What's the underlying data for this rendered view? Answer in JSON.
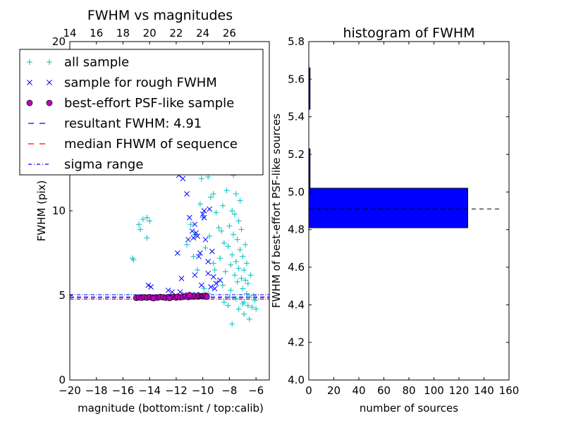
{
  "chart_data": [
    {
      "type": "scatter",
      "title": "FWHM vs magnitudes",
      "xlabel": "magnitude (bottom:isnt / top:calib)",
      "ylabel": "FWHM (pix)",
      "xlim": [
        -20,
        -5
      ],
      "ylim": [
        0,
        20
      ],
      "x_ticks": [
        -20,
        -18,
        -16,
        -14,
        -12,
        -10,
        -8,
        -6
      ],
      "x_tick_labels": [
        "−20",
        "−18",
        "−16",
        "−14",
        "−12",
        "−10",
        "−8",
        "−6"
      ],
      "y_ticks": [
        0,
        5,
        10,
        15,
        20
      ],
      "y_tick_labels": [
        "0",
        "5",
        "10",
        "15",
        "20"
      ],
      "top_x_ticks": [
        14,
        16,
        18,
        20,
        22,
        24,
        26
      ],
      "top_x_tick_labels": [
        "14",
        "16",
        "18",
        "20",
        "22",
        "24",
        "26"
      ],
      "top_x_offset": 34,
      "grid": false,
      "legend_position": "upper-left",
      "resultant_fwhm": 4.91,
      "median_fwhm": 4.86,
      "sigma_range": [
        4.78,
        5.04
      ],
      "series": [
        {
          "name": "all sample",
          "marker": "plus",
          "color": "#00bfbf",
          "points": [
            [
              -15.2,
              7.1
            ],
            [
              -15.3,
              7.2
            ],
            [
              -14.8,
              9.2
            ],
            [
              -14.7,
              8.9
            ],
            [
              -14.5,
              9.5
            ],
            [
              -14.2,
              9.6
            ],
            [
              -14.0,
              9.4
            ],
            [
              -14.2,
              8.4
            ],
            [
              -11.4,
              13.2
            ],
            [
              -11.2,
              8.0
            ],
            [
              -10.9,
              9.2
            ],
            [
              -10.6,
              8.6
            ],
            [
              -10.2,
              10.4
            ],
            [
              -10.0,
              9.6
            ],
            [
              -10.4,
              6.5
            ],
            [
              -10.7,
              7.3
            ],
            [
              -9.6,
              12.0
            ],
            [
              -9.5,
              8.5
            ],
            [
              -9.3,
              14.4
            ],
            [
              -9.2,
              11.0
            ],
            [
              -9.1,
              6.5
            ],
            [
              -8.9,
              16.5
            ],
            [
              -8.8,
              9.0
            ],
            [
              -8.7,
              7.2
            ],
            [
              -8.6,
              12.8
            ],
            [
              -8.5,
              10.3
            ],
            [
              -8.5,
              5.6
            ],
            [
              -8.4,
              8.1
            ],
            [
              -8.3,
              13.7
            ],
            [
              -8.3,
              6.4
            ],
            [
              -8.2,
              11.2
            ],
            [
              -8.1,
              7.9
            ],
            [
              -8.0,
              15.2
            ],
            [
              -8.0,
              9.1
            ],
            [
              -7.9,
              6.8
            ],
            [
              -7.9,
              5.3
            ],
            [
              -7.8,
              10.0
            ],
            [
              -7.8,
              7.4
            ],
            [
              -7.7,
              12.1
            ],
            [
              -7.7,
              8.6
            ],
            [
              -7.6,
              6.2
            ],
            [
              -7.6,
              9.8
            ],
            [
              -7.5,
              11.0
            ],
            [
              -7.5,
              7.0
            ],
            [
              -7.4,
              8.3
            ],
            [
              -7.4,
              5.8
            ],
            [
              -7.3,
              9.4
            ],
            [
              -7.3,
              6.6
            ],
            [
              -7.2,
              7.7
            ],
            [
              -7.2,
              10.6
            ],
            [
              -7.1,
              6.0
            ],
            [
              -7.1,
              8.9
            ],
            [
              -7.0,
              5.4
            ],
            [
              -7.0,
              7.3
            ],
            [
              -6.9,
              6.5
            ],
            [
              -6.9,
              4.6
            ],
            [
              -6.8,
              5.9
            ],
            [
              -6.8,
              8.0
            ],
            [
              -6.7,
              5.1
            ],
            [
              -6.7,
              6.9
            ],
            [
              -6.6,
              4.4
            ],
            [
              -6.6,
              5.7
            ],
            [
              -6.5,
              4.9
            ],
            [
              -6.4,
              6.2
            ],
            [
              -6.3,
              4.3
            ],
            [
              -6.2,
              5.0
            ],
            [
              -6.1,
              4.7
            ],
            [
              -6.0,
              4.2
            ],
            [
              -8.4,
              4.6
            ],
            [
              -8.1,
              4.4
            ],
            [
              -7.8,
              3.3
            ],
            [
              -7.3,
              4.2
            ],
            [
              -6.9,
              3.9
            ],
            [
              -6.5,
              3.6
            ],
            [
              -8.7,
              19.0
            ],
            [
              -8.5,
              18.2
            ],
            [
              -8.2,
              17.4
            ],
            [
              -7.9,
              16.8
            ],
            [
              -9.7,
              15.6
            ],
            [
              -9.9,
              13.1
            ],
            [
              -10.1,
              11.9
            ],
            [
              -9.4,
              10.8
            ],
            [
              -9.0,
              9.9
            ],
            [
              -8.6,
              8.8
            ],
            [
              -9.8,
              7.8
            ],
            [
              -9.2,
              6.9
            ],
            [
              -8.9,
              5.8
            ],
            [
              -8.0,
              4.9
            ],
            [
              -9.9,
              5.4
            ],
            [
              -9.6,
              5.1
            ],
            [
              -7.5,
              4.8
            ],
            [
              -7.0,
              4.5
            ]
          ]
        },
        {
          "name": "sample for rough FWHM",
          "marker": "x",
          "color": "#0000ff",
          "points": [
            [
              -11.8,
              12.1
            ],
            [
              -11.5,
              11.9
            ],
            [
              -11.2,
              11.0
            ],
            [
              -11.1,
              8.3
            ],
            [
              -11.0,
              9.6
            ],
            [
              -10.8,
              8.8
            ],
            [
              -10.7,
              8.4
            ],
            [
              -10.6,
              9.2
            ],
            [
              -10.5,
              8.7
            ],
            [
              -10.4,
              8.5
            ],
            [
              -10.3,
              7.3
            ],
            [
              -10.2,
              7.5
            ],
            [
              -10.0,
              9.8
            ],
            [
              -9.9,
              9.6
            ],
            [
              -9.9,
              10.0
            ],
            [
              -9.8,
              8.3
            ],
            [
              -9.6,
              7.0
            ],
            [
              -9.6,
              6.3
            ],
            [
              -9.5,
              10.1
            ],
            [
              -9.4,
              5.5
            ],
            [
              -9.3,
              7.6
            ],
            [
              -9.2,
              6.1
            ],
            [
              -11.9,
              7.5
            ],
            [
              -11.7,
              5.2
            ],
            [
              -14.1,
              5.6
            ],
            [
              -13.9,
              5.5
            ],
            [
              -12.6,
              5.3
            ],
            [
              -12.3,
              5.2
            ],
            [
              -11.6,
              6.0
            ],
            [
              -10.6,
              6.2
            ],
            [
              -10.1,
              5.6
            ],
            [
              -9.1,
              5.4
            ],
            [
              -9.0,
              5.7
            ],
            [
              -8.7,
              5.9
            ],
            [
              -12.0,
              4.98
            ],
            [
              -11.4,
              5.05
            ],
            [
              -10.9,
              5.02
            ],
            [
              -10.5,
              5.06
            ],
            [
              -10.2,
              4.97
            ]
          ]
        },
        {
          "name": "best-effort PSF-like sample",
          "marker": "circle",
          "color": "#bf00bf",
          "points": [
            [
              -15.0,
              4.85
            ],
            [
              -14.8,
              4.88
            ],
            [
              -14.6,
              4.86
            ],
            [
              -14.4,
              4.89
            ],
            [
              -14.2,
              4.87
            ],
            [
              -14.0,
              4.9
            ],
            [
              -13.8,
              4.86
            ],
            [
              -13.6,
              4.88
            ],
            [
              -13.4,
              4.87
            ],
            [
              -13.2,
              4.91
            ],
            [
              -13.0,
              4.89
            ],
            [
              -12.8,
              4.86
            ],
            [
              -12.6,
              4.9
            ],
            [
              -12.4,
              4.88
            ],
            [
              -12.2,
              4.92
            ],
            [
              -12.0,
              4.87
            ],
            [
              -11.9,
              4.93
            ],
            [
              -11.7,
              4.89
            ],
            [
              -11.5,
              4.91
            ],
            [
              -11.3,
              4.95
            ],
            [
              -11.1,
              4.9
            ],
            [
              -10.9,
              4.94
            ],
            [
              -10.7,
              4.92
            ],
            [
              -10.6,
              4.96
            ],
            [
              -10.4,
              4.93
            ],
            [
              -10.3,
              4.98
            ],
            [
              -10.1,
              4.95
            ],
            [
              -10.0,
              4.97
            ],
            [
              -9.9,
              4.94
            ],
            [
              -9.8,
              4.99
            ],
            [
              -9.7,
              4.92
            ],
            [
              -12.5,
              4.84
            ],
            [
              -13.7,
              4.83
            ],
            [
              -11.0,
              5.02
            ]
          ]
        }
      ],
      "legend": [
        {
          "label": "all sample",
          "marker": "plus",
          "color": "#00bfbf"
        },
        {
          "label": "sample for rough FWHM",
          "marker": "x",
          "color": "#0000ff"
        },
        {
          "label": "best-effort PSF-like sample",
          "marker": "circle",
          "color": "#bf00bf"
        },
        {
          "label": "resultant FWHM: 4.91",
          "marker": "dashed-line",
          "color": "#0000ff"
        },
        {
          "label": "median FHWM of sequence",
          "marker": "dashed-line",
          "color": "#ff0000"
        },
        {
          "label": "sigma range",
          "marker": "dashdot-line",
          "color": "#0000ff"
        }
      ]
    },
    {
      "type": "bar",
      "orientation": "horizontal",
      "title": "histogram of FWHM",
      "xlabel": "number of sources",
      "ylabel": "FWHM of best-effort PSF-like sources",
      "xlim": [
        0,
        160
      ],
      "ylim": [
        4.0,
        5.8
      ],
      "x_ticks": [
        0,
        20,
        40,
        60,
        80,
        100,
        120,
        140,
        160
      ],
      "x_tick_labels": [
        "0",
        "20",
        "40",
        "60",
        "80",
        "100",
        "120",
        "140",
        "160"
      ],
      "y_ticks": [
        4.0,
        4.2,
        4.4,
        4.6,
        4.8,
        5.0,
        5.2,
        5.4,
        5.6,
        5.8
      ],
      "y_tick_labels": [
        "4.0",
        "4.2",
        "4.4",
        "4.6",
        "4.8",
        "5.0",
        "5.2",
        "5.4",
        "5.6",
        "5.8"
      ],
      "bar_color": "#0000ff",
      "bins": [
        {
          "low": 4.81,
          "high": 5.02,
          "count": 127
        },
        {
          "low": 5.02,
          "high": 5.23,
          "count": 1
        },
        {
          "low": 5.23,
          "high": 5.44,
          "count": 0
        },
        {
          "low": 5.44,
          "high": 5.66,
          "count": 1
        }
      ],
      "reference_line": {
        "y": 4.91,
        "x_range": [
          0,
          155
        ],
        "style": "dashed",
        "color": "#000000"
      },
      "grid": false
    }
  ]
}
